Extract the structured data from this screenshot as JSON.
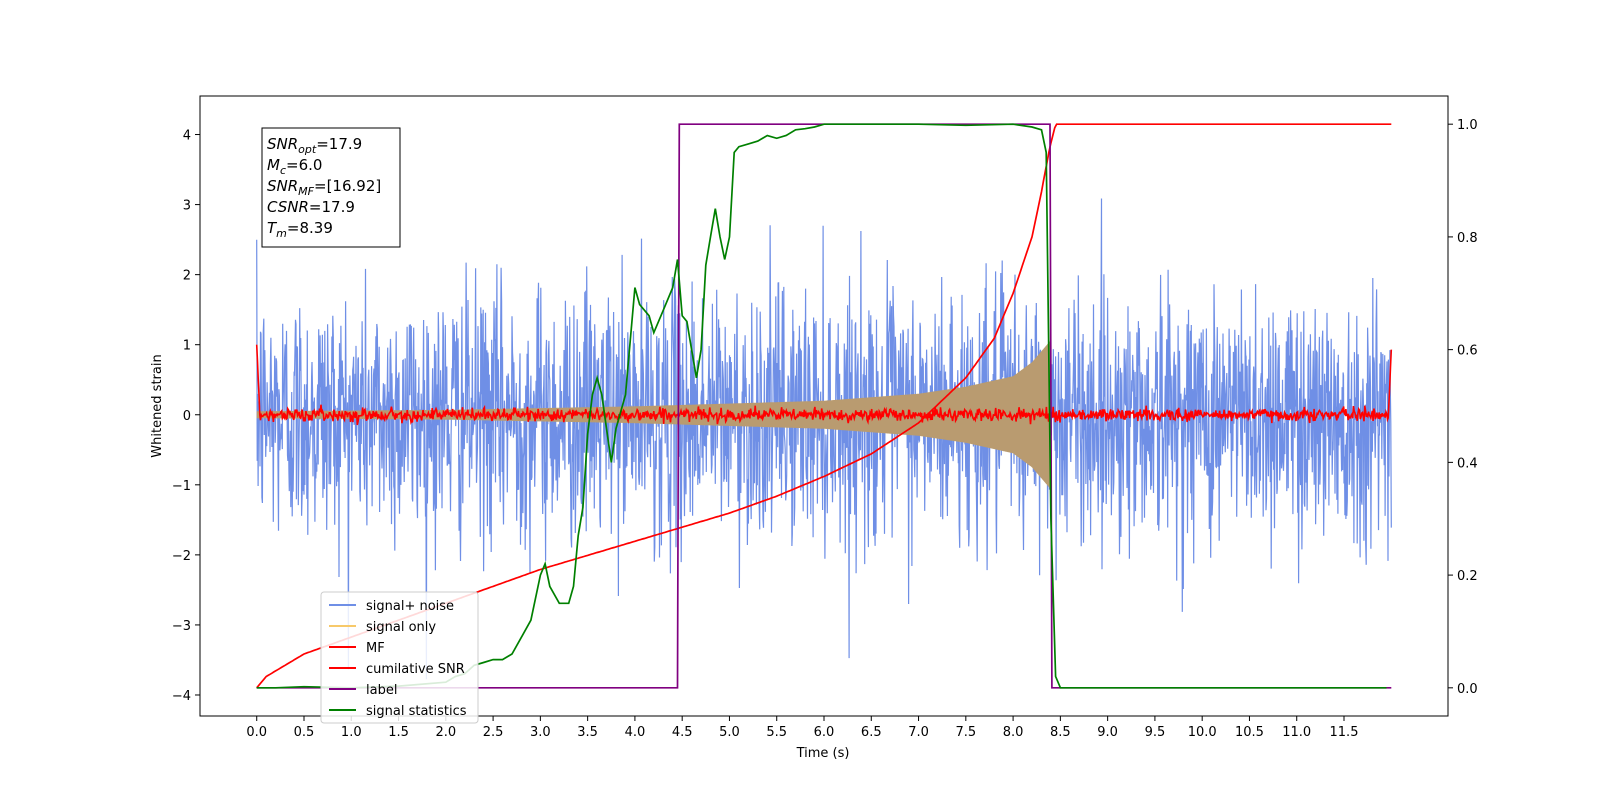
{
  "chart_data": {
    "type": "line",
    "title": "",
    "xlabel": "Time (s)",
    "ylabel": "Whitened strain",
    "y2label": "",
    "xlim": [
      -0.6,
      12.6
    ],
    "ylim": [
      -4.3,
      4.55
    ],
    "y2lim": [
      -0.05,
      1.05
    ],
    "xticks": [
      "0.0",
      "0.5",
      "1.0",
      "1.5",
      "2.0",
      "2.5",
      "3.0",
      "3.5",
      "4.0",
      "4.5",
      "5.0",
      "5.5",
      "6.0",
      "6.5",
      "7.0",
      "7.5",
      "8.0",
      "8.5",
      "9.0",
      "9.5",
      "10.0",
      "10.5",
      "11.0",
      "11.5"
    ],
    "yticks": [
      "−4",
      "−3",
      "−2",
      "−1",
      "0",
      "1",
      "2",
      "3",
      "4"
    ],
    "y2ticks": [
      "0.0",
      "0.2",
      "0.4",
      "0.6",
      "0.8",
      "1.0"
    ],
    "grid": false,
    "legend_position": "lower-left",
    "series": [
      {
        "name": "signal+ noise",
        "color": "#6f8fe6",
        "axis": "left",
        "kind": "noise",
        "x_range": [
          0,
          12
        ],
        "amplitude_std": 0.9
      },
      {
        "name": "signal only",
        "color": "#f7c96a",
        "axis": "left",
        "kind": "chirp",
        "x_range": [
          0,
          8.39
        ],
        "envelope": {
          "x": [
            0,
            2,
            4,
            6,
            7,
            7.5,
            8,
            8.2,
            8.39
          ],
          "y": [
            0.05,
            0.07,
            0.12,
            0.2,
            0.3,
            0.4,
            0.55,
            0.75,
            1.05
          ]
        }
      },
      {
        "name": "MF",
        "color": "#ff0000",
        "axis": "left",
        "kind": "mf",
        "x_range": [
          0,
          12
        ]
      },
      {
        "name": "cumilative SNR",
        "color": "#ff0000",
        "axis": "right",
        "x": [
          0,
          0.1,
          0.5,
          1,
          1.5,
          2,
          2.5,
          3,
          3.5,
          4,
          4.5,
          5,
          5.5,
          6,
          6.5,
          7,
          7.5,
          7.8,
          8,
          8.2,
          8.3,
          8.39,
          8.45,
          12
        ],
        "y": [
          0,
          0.02,
          0.06,
          0.09,
          0.12,
          0.15,
          0.18,
          0.21,
          0.235,
          0.26,
          0.285,
          0.31,
          0.34,
          0.375,
          0.415,
          0.47,
          0.55,
          0.62,
          0.7,
          0.8,
          0.88,
          0.96,
          1.0,
          1.0
        ]
      },
      {
        "name": "label",
        "color": "#800080",
        "axis": "right",
        "x": [
          0,
          4.45,
          4.47,
          8.39,
          8.41,
          12
        ],
        "y": [
          0,
          0,
          1,
          1,
          0,
          0
        ]
      },
      {
        "name": "signal statistics",
        "color": "#008000",
        "axis": "right",
        "x": [
          0,
          0.2,
          0.5,
          1.0,
          1.5,
          2.0,
          2.1,
          2.2,
          2.3,
          2.4,
          2.5,
          2.6,
          2.7,
          2.8,
          2.9,
          3.0,
          3.05,
          3.1,
          3.2,
          3.3,
          3.35,
          3.4,
          3.45,
          3.5,
          3.55,
          3.6,
          3.65,
          3.7,
          3.75,
          3.8,
          3.9,
          4.0,
          4.05,
          4.1,
          4.15,
          4.2,
          4.3,
          4.4,
          4.45,
          4.5,
          4.55,
          4.6,
          4.65,
          4.7,
          4.75,
          4.8,
          4.85,
          4.9,
          4.95,
          5.0,
          5.05,
          5.1,
          5.2,
          5.3,
          5.4,
          5.5,
          5.6,
          5.7,
          5.8,
          5.9,
          6.0,
          6.5,
          7.0,
          7.5,
          8.0,
          8.2,
          8.3,
          8.35,
          8.4,
          8.45,
          8.5,
          9,
          10,
          11,
          11.95
        ],
        "y": [
          0,
          0.0,
          0.002,
          0.0,
          0.003,
          0.01,
          0.02,
          0.025,
          0.04,
          0.045,
          0.05,
          0.05,
          0.06,
          0.09,
          0.12,
          0.2,
          0.22,
          0.18,
          0.15,
          0.15,
          0.18,
          0.27,
          0.32,
          0.45,
          0.52,
          0.55,
          0.52,
          0.46,
          0.4,
          0.46,
          0.52,
          0.71,
          0.68,
          0.67,
          0.66,
          0.63,
          0.67,
          0.71,
          0.76,
          0.66,
          0.65,
          0.6,
          0.55,
          0.6,
          0.75,
          0.8,
          0.85,
          0.8,
          0.76,
          0.8,
          0.95,
          0.96,
          0.965,
          0.97,
          0.98,
          0.975,
          0.98,
          0.99,
          0.992,
          0.995,
          1.0,
          1.0,
          1.0,
          0.998,
          1.0,
          0.995,
          0.99,
          0.95,
          0.3,
          0.02,
          0.0,
          0.0,
          0.0,
          0.0,
          0.0
        ]
      }
    ],
    "annotation": {
      "lines": [
        {
          "sym": "SNR",
          "sub": "opt",
          "val": "=17.9"
        },
        {
          "sym": "M",
          "sub": "c",
          "val": "=6.0"
        },
        {
          "sym": "SNR",
          "sub": "MF",
          "val": "=[16.92]"
        },
        {
          "sym": "CSNR",
          "sub": "",
          "val": "=17.9"
        },
        {
          "sym": "T",
          "sub": "m",
          "val": "=8.39"
        }
      ]
    }
  }
}
